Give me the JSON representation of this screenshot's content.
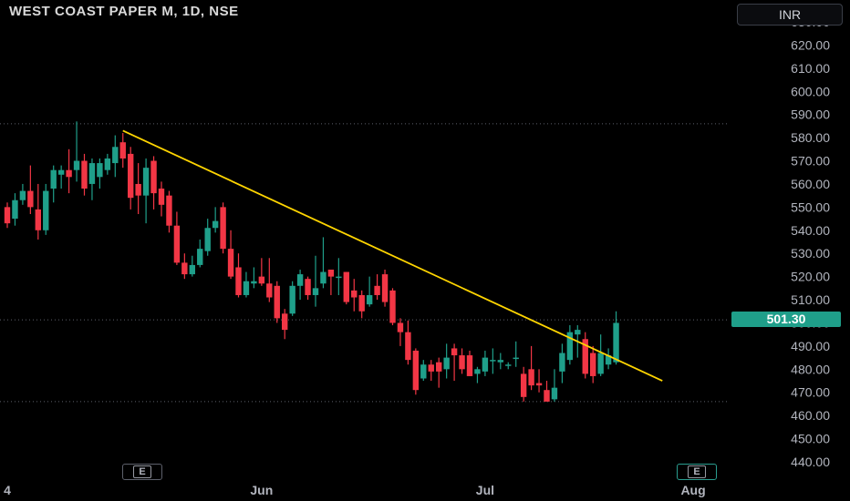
{
  "header": {
    "title": "WEST COAST PAPER M, 1D, NSE",
    "currency": "INR"
  },
  "last_price_label": "501.30",
  "earnings_badge": "E",
  "colors": {
    "up": "#1f9f8a",
    "down": "#f23645",
    "trendline": "#ffd500",
    "background": "#000000"
  },
  "chart_data": {
    "type": "candlestick",
    "title": "WEST COAST PAPER M, 1D, NSE",
    "ylim": [
      438,
      632
    ],
    "y_ticks": [
      "630.00",
      "620.00",
      "610.00",
      "600.00",
      "590.00",
      "580.00",
      "570.00",
      "560.00",
      "550.00",
      "540.00",
      "530.00",
      "520.00",
      "510.00",
      "500.00",
      "490.00",
      "480.00",
      "470.00",
      "460.00",
      "450.00",
      "440.00"
    ],
    "x_labels": [
      {
        "label": "4",
        "index": 0
      },
      {
        "label": "Jun",
        "index": 33
      },
      {
        "label": "Jul",
        "index": 62
      },
      {
        "label": "Aug",
        "index": 89
      }
    ],
    "last_price": 501.3,
    "candles": [
      [
        550,
        543,
        552,
        541
      ],
      [
        545,
        553,
        556,
        542
      ],
      [
        553,
        557,
        560,
        551
      ],
      [
        557,
        550,
        568,
        547
      ],
      [
        549,
        540,
        560,
        536
      ],
      [
        540,
        557,
        560,
        538
      ],
      [
        558,
        566,
        568,
        552
      ],
      [
        564,
        566,
        568,
        558
      ],
      [
        566,
        563,
        575,
        556
      ],
      [
        566,
        570,
        587,
        561
      ],
      [
        570,
        558,
        573,
        555
      ],
      [
        560,
        569,
        571,
        553
      ],
      [
        563,
        569,
        571,
        558
      ],
      [
        566,
        571,
        573,
        564
      ],
      [
        569,
        576,
        581,
        563
      ],
      [
        578,
        571,
        582,
        567
      ],
      [
        573,
        554,
        576,
        549
      ],
      [
        560,
        555,
        569,
        547
      ],
      [
        555,
        567,
        571,
        543
      ],
      [
        570,
        556,
        572,
        549
      ],
      [
        558,
        551,
        561,
        546
      ],
      [
        555,
        542,
        557,
        539
      ],
      [
        542,
        526,
        548,
        525
      ],
      [
        526,
        521,
        530,
        519
      ],
      [
        521,
        525,
        529,
        520
      ],
      [
        525,
        532,
        536,
        524
      ],
      [
        531,
        541,
        545,
        529
      ],
      [
        541,
        544,
        550,
        539
      ],
      [
        550,
        532,
        552,
        530
      ],
      [
        532,
        520,
        540,
        519
      ],
      [
        524,
        512,
        530,
        511
      ],
      [
        512,
        518,
        522,
        511
      ],
      [
        517,
        518,
        524,
        515
      ],
      [
        520,
        517,
        528,
        516
      ],
      [
        517,
        511,
        528,
        509
      ],
      [
        516,
        502,
        518,
        500
      ],
      [
        504,
        497,
        506,
        493
      ],
      [
        504,
        516,
        518,
        503
      ],
      [
        516,
        521,
        523,
        510
      ],
      [
        519,
        512,
        520,
        510
      ],
      [
        512,
        515,
        529,
        507
      ],
      [
        517,
        522,
        537,
        515
      ],
      [
        523,
        520,
        523,
        512
      ],
      [
        520,
        520,
        528,
        512
      ],
      [
        522,
        509,
        522,
        508
      ],
      [
        514,
        511,
        519,
        505
      ],
      [
        512,
        505,
        514,
        502
      ],
      [
        508,
        512,
        520,
        507
      ],
      [
        516,
        512,
        521,
        510
      ],
      [
        521,
        509,
        523,
        507
      ],
      [
        514,
        500,
        515,
        499
      ],
      [
        500,
        496,
        502,
        490
      ],
      [
        496,
        484,
        501,
        482
      ],
      [
        488,
        471,
        489,
        469
      ],
      [
        476,
        482,
        484,
        475
      ],
      [
        482,
        479,
        484,
        475
      ],
      [
        483,
        479,
        485,
        472
      ],
      [
        480,
        485,
        491,
        476
      ],
      [
        489,
        486,
        491,
        475
      ],
      [
        486,
        480,
        489,
        478
      ],
      [
        486,
        477,
        488,
        477
      ],
      [
        478,
        480,
        481,
        474
      ],
      [
        479,
        485,
        488,
        477
      ],
      [
        484,
        484,
        489,
        478
      ],
      [
        483,
        484,
        487,
        480
      ],
      [
        482,
        482,
        483,
        480
      ],
      [
        485,
        485,
        492,
        481
      ],
      [
        478,
        468,
        481,
        466
      ],
      [
        480,
        473,
        490,
        471
      ],
      [
        474,
        473,
        480,
        470
      ],
      [
        471,
        466,
        475,
        467
      ],
      [
        467,
        472,
        480,
        466
      ],
      [
        479,
        487,
        491,
        474
      ],
      [
        484,
        496,
        499,
        482
      ],
      [
        495,
        497,
        499,
        485
      ],
      [
        493,
        478,
        496,
        476
      ],
      [
        487,
        477,
        490,
        474
      ],
      [
        478,
        487,
        495,
        477
      ],
      [
        482,
        486,
        489,
        480
      ],
      [
        483,
        500,
        505,
        482
      ]
    ],
    "trendline": {
      "from": {
        "index": 15,
        "price": 583
      },
      "to": {
        "index": 85,
        "price": 475
      }
    },
    "dashed_levels": [
      586,
      501.3,
      466
    ]
  }
}
